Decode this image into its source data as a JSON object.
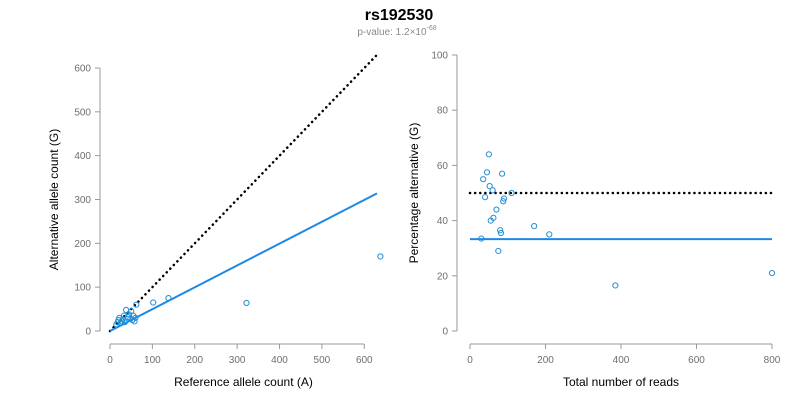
{
  "title": "rs192530",
  "subtitle": {
    "prefix": "p-value: 1.2×10",
    "exponent": "-68"
  },
  "colors": {
    "points": "#1f8fd6",
    "fit_line": "#1e88e5",
    "reference_line": "#000000",
    "axis": "#999999",
    "tick_text": "#6e6e6e"
  },
  "chart_data": [
    {
      "type": "scatter",
      "xlabel": "Reference allele count (A)",
      "ylabel": "Alternative allele count (G)",
      "xlim": [
        0,
        630
      ],
      "ylim": [
        0,
        600
      ],
      "xticks": [
        0,
        100,
        200,
        300,
        400,
        500,
        600
      ],
      "yticks": [
        0,
        100,
        200,
        300,
        400,
        500,
        600
      ],
      "grid": false,
      "points": [
        {
          "x": 15,
          "y": 15
        },
        {
          "x": 18,
          "y": 20
        },
        {
          "x": 20,
          "y": 25
        },
        {
          "x": 22,
          "y": 30
        },
        {
          "x": 25,
          "y": 18
        },
        {
          "x": 28,
          "y": 22
        },
        {
          "x": 30,
          "y": 27
        },
        {
          "x": 33,
          "y": 35
        },
        {
          "x": 35,
          "y": 20
        },
        {
          "x": 38,
          "y": 48
        },
        {
          "x": 42,
          "y": 32
        },
        {
          "x": 45,
          "y": 38
        },
        {
          "x": 48,
          "y": 28
        },
        {
          "x": 50,
          "y": 45
        },
        {
          "x": 53,
          "y": 25
        },
        {
          "x": 55,
          "y": 35
        },
        {
          "x": 58,
          "y": 22
        },
        {
          "x": 60,
          "y": 30
        },
        {
          "x": 62,
          "y": 60
        },
        {
          "x": 102,
          "y": 65
        },
        {
          "x": 138,
          "y": 75
        },
        {
          "x": 322,
          "y": 64
        },
        {
          "x": 638,
          "y": 170
        }
      ],
      "lines": [
        {
          "style": "dotted",
          "x": [
            0,
            630
          ],
          "y": [
            0,
            630
          ]
        },
        {
          "style": "solid",
          "x": [
            0,
            630
          ],
          "y": [
            0,
            314
          ]
        }
      ]
    },
    {
      "type": "scatter",
      "xlabel": "Total number of reads",
      "ylabel": "Percentage alternative (G)",
      "xlim": [
        0,
        800
      ],
      "ylim": [
        0,
        100
      ],
      "xticks": [
        0,
        200,
        400,
        600,
        800
      ],
      "yticks": [
        0,
        20,
        40,
        60,
        80,
        100
      ],
      "grid": false,
      "points": [
        {
          "x": 30,
          "y": 33.5
        },
        {
          "x": 35,
          "y": 55
        },
        {
          "x": 40,
          "y": 48.5
        },
        {
          "x": 45,
          "y": 57.5
        },
        {
          "x": 50,
          "y": 64
        },
        {
          "x": 52,
          "y": 52.5
        },
        {
          "x": 55,
          "y": 40
        },
        {
          "x": 60,
          "y": 51
        },
        {
          "x": 62,
          "y": 41
        },
        {
          "x": 70,
          "y": 44
        },
        {
          "x": 75,
          "y": 29
        },
        {
          "x": 80,
          "y": 36.5
        },
        {
          "x": 82,
          "y": 35.5
        },
        {
          "x": 85,
          "y": 57
        },
        {
          "x": 88,
          "y": 47
        },
        {
          "x": 90,
          "y": 48
        },
        {
          "x": 110,
          "y": 50
        },
        {
          "x": 170,
          "y": 38
        },
        {
          "x": 210,
          "y": 35
        },
        {
          "x": 385,
          "y": 16.5
        },
        {
          "x": 800,
          "y": 21
        }
      ],
      "lines": [
        {
          "style": "dotted",
          "x": [
            0,
            800
          ],
          "y": [
            50,
            50
          ]
        },
        {
          "style": "solid",
          "x": [
            0,
            800
          ],
          "y": [
            33.3,
            33.3
          ]
        }
      ]
    }
  ]
}
